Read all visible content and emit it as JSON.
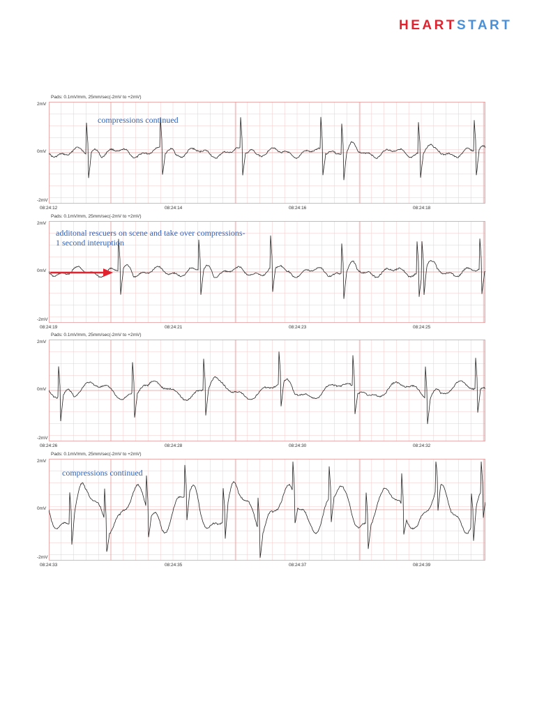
{
  "logo": {
    "part1": "HEART",
    "part2": "START"
  },
  "strips": [
    {
      "header": "Pads: 0.1mV/mm, 25mm/sec(-2mV to +2mV)",
      "y_labels": [
        "2mV",
        "0mV",
        "-2mV"
      ],
      "time_labels": [
        "08:24:12",
        "08:24:14",
        "08:24:16",
        "08:24:18"
      ],
      "annotation": "compressions continued"
    },
    {
      "header": "Pads: 0.1mV/mm, 25mm/sec(-2mV to +2mV)",
      "y_labels": [
        "2mV",
        "0mV",
        "-2mV"
      ],
      "time_labels": [
        "08:24:19",
        "08:24:21",
        "08:24:23",
        "08:24:25"
      ],
      "annotation_line1": "additonal rescuers on scene and take over compressions-",
      "annotation_line2": "1 second interuption"
    },
    {
      "header": "Pads: 0.1mV/mm, 25mm/sec(-2mV to +2mV)",
      "y_labels": [
        "2mV",
        "0mV",
        "-2mV"
      ],
      "time_labels": [
        "08:24:26",
        "08:24:28",
        "08:24:30",
        "08:24:32"
      ]
    },
    {
      "header": "Pads: 0.1mV/mm, 25mm/sec(-2mV to +2mV)",
      "y_labels": [
        "2mV",
        "0mV",
        "-2mV"
      ],
      "time_labels": [
        "08:24:33",
        "08:24:35",
        "08:24:37",
        "08:24:39"
      ],
      "annotation": "compressions continued"
    }
  ],
  "colors": {
    "grid_minor": "#f3c9c9",
    "grid_major": "#e89a9a",
    "trace": "#222222",
    "annotation": "#2f62b8",
    "arrow": "#e0232f"
  }
}
